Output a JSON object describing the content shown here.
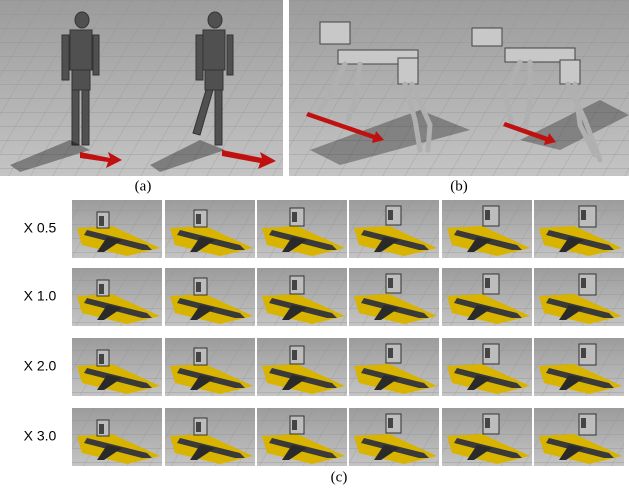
{
  "panels": [
    {
      "label": "(a)"
    },
    {
      "label": "(b)"
    }
  ],
  "grid": {
    "rows": [
      {
        "label": "X 0.5"
      },
      {
        "label": "X 1.0"
      },
      {
        "label": "X 2.0"
      },
      {
        "label": "X 3.0"
      }
    ],
    "caption": "(c)"
  }
}
